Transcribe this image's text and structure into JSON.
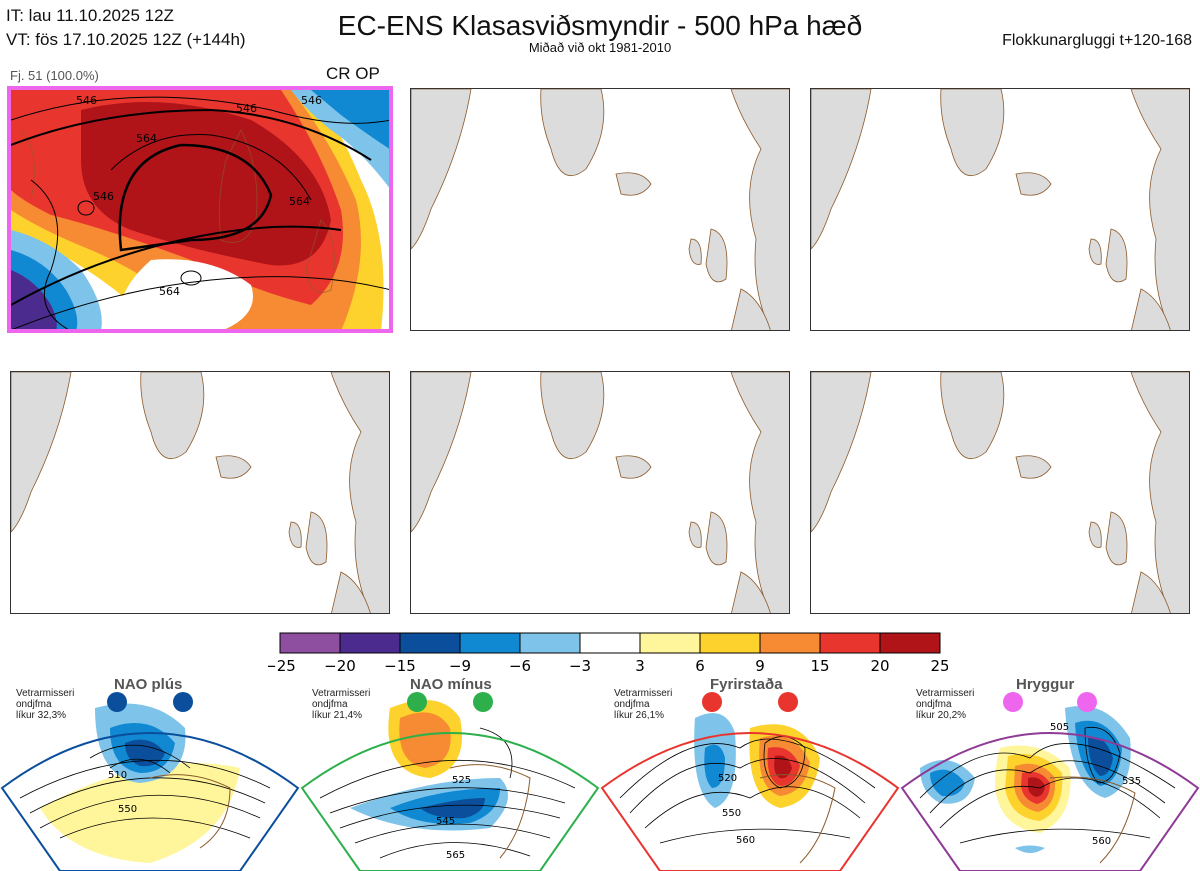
{
  "header": {
    "it_line": "IT: lau 11.10.2025 12Z",
    "vt_line": "VT: fös 17.10.2025 12Z  (+144h)",
    "title": "EC-ENS Klasasviðsmyndir - 500 hPa hæð",
    "subtitle": "Miðað við okt 1981-2010",
    "window": "Flokkunargluggi t+120-168"
  },
  "cluster_panel": {
    "fj_label": "Fj. 51 (100.0%)",
    "op_marker": "CR OP",
    "contour_labels": [
      "546",
      "546",
      "564",
      "564",
      "546",
      "564",
      "546"
    ],
    "highlight_color": "#ee66ee"
  },
  "empty_panels": [
    "panel-2",
    "panel-3",
    "panel-4",
    "panel-5",
    "panel-6"
  ],
  "colorbar": {
    "ticks": [
      "−25",
      "−20",
      "−15",
      "−9",
      "−6",
      "−3",
      "3",
      "6",
      "9",
      "15",
      "20",
      "25"
    ],
    "colors": [
      "#8e4fa0",
      "#4b2c8e",
      "#0b4f9c",
      "#1189d2",
      "#7ec3ea",
      "#ffffff",
      "#fff59a",
      "#fed22c",
      "#f68b33",
      "#e8362f",
      "#b01419"
    ]
  },
  "regimes": [
    {
      "name": "NAO plús",
      "note": [
        "Vetrarmisseri",
        "ondjfma",
        "líkur 32,3%"
      ],
      "color": "#0b4f9c",
      "labels": [
        "510",
        "550"
      ]
    },
    {
      "name": "NAO mínus",
      "note": [
        "Vetrarmisseri",
        "ondjfma",
        "líkur 21,4%"
      ],
      "color": "#2db04b",
      "labels": [
        "525",
        "545",
        "565"
      ]
    },
    {
      "name": "Fyrirstaða",
      "note": [
        "Vetrarmisseri",
        "ondjfma",
        "líkur 26,1%"
      ],
      "color": "#e8362f",
      "labels": [
        "520",
        "550",
        "560"
      ]
    },
    {
      "name": "Hryggur",
      "note": [
        "Vetrarmisseri",
        "ondjfma",
        "líkur 20,2%"
      ],
      "color": "#ee66ee",
      "labels": [
        "505",
        "535",
        "560"
      ]
    }
  ]
}
